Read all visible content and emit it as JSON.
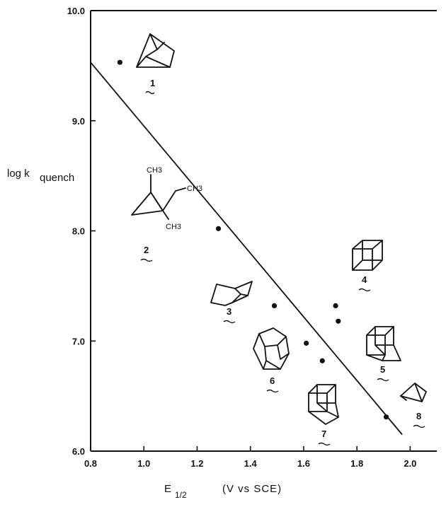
{
  "chart_data": {
    "type": "scatter",
    "xlabel_main": "E",
    "xlabel_sub": "1/2",
    "xlabel_units": "(V vs SCE)",
    "ylabel_main": "log k",
    "ylabel_sub": "quench",
    "xlim": [
      0.8,
      2.1
    ],
    "ylim": [
      6.0,
      10.0
    ],
    "x_ticks": [
      0.8,
      1.0,
      1.2,
      1.4,
      1.6,
      1.8,
      2.0
    ],
    "x_tick_labels": [
      "0.8",
      "1.0",
      "1.2",
      "1.4",
      "1.6",
      "1.8",
      "2.0"
    ],
    "y_ticks": [
      6.0,
      7.0,
      8.0,
      9.0,
      10.0
    ],
    "y_tick_labels": [
      "6.0",
      "7.0",
      "8.0",
      "9.0",
      "10.0"
    ],
    "grid": false,
    "points": [
      {
        "x": 0.91,
        "y": 9.53
      },
      {
        "x": 1.28,
        "y": 8.02
      },
      {
        "x": 1.49,
        "y": 7.32
      },
      {
        "x": 1.61,
        "y": 6.98
      },
      {
        "x": 1.67,
        "y": 6.82
      },
      {
        "x": 1.72,
        "y": 7.32
      },
      {
        "x": 1.73,
        "y": 7.18
      },
      {
        "x": 1.91,
        "y": 6.31
      }
    ],
    "fit_line": {
      "x": [
        0.8,
        1.97
      ],
      "y": [
        9.53,
        6.15
      ]
    },
    "compound_labels": [
      "1",
      "2",
      "3",
      "4",
      "5",
      "6",
      "7",
      "8"
    ],
    "substituent_labels": [
      "CH3",
      "CH3",
      "CH3"
    ]
  }
}
